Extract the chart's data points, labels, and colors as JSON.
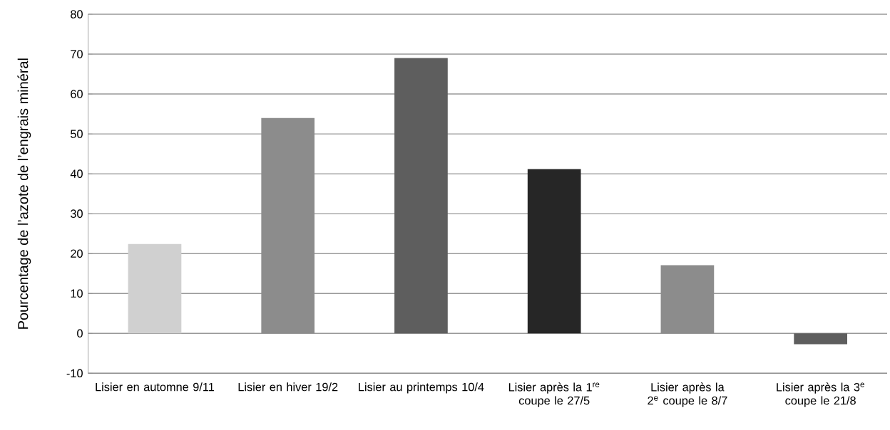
{
  "chart_data": {
    "type": "bar",
    "ylabel": "Pourcentage de l’azote de l’engrais minéral",
    "categories": [
      "Lisier en automne 9/11",
      "Lisier en hiver 19/2",
      "Lisier au printemps 10/4",
      "Lisier après la 1$^{re}$ coupe le 27/5",
      "Lisier après la 2$^{e}$ coupe le 8/7",
      "Lisier après la 3$^{e}$ coupe le 21/8"
    ],
    "values": [
      22.4,
      54,
      69,
      41.2,
      17.1,
      -2.7
    ],
    "colors": [
      "#d0d0d0",
      "#8c8c8c",
      "#5e5e5e",
      "#262626",
      "#8c8c8c",
      "#5e5e5e"
    ],
    "ylim": [
      -10,
      80
    ],
    "yticks": [
      -10,
      0,
      10,
      20,
      30,
      40,
      50,
      60,
      70,
      80
    ],
    "grid": "y"
  }
}
